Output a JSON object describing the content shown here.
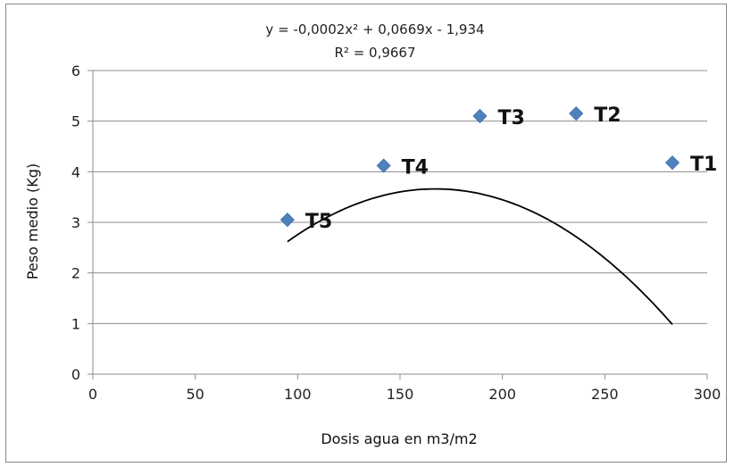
{
  "chart_data": {
    "type": "scatter",
    "title": "",
    "xlabel": "Dosis agua en m3/m2",
    "ylabel": "Peso medio (Kg)",
    "xlim": [
      0,
      300
    ],
    "ylim": [
      0,
      6
    ],
    "x_ticks": [
      0,
      50,
      100,
      150,
      200,
      250,
      300
    ],
    "y_ticks": [
      0,
      1,
      2,
      3,
      4,
      5,
      6
    ],
    "grid": "horizontal",
    "legend": "none",
    "marker_color": "#4f81bd",
    "trendline_color": "#000000",
    "points": [
      {
        "label": "T5",
        "x": 95,
        "y": 3.05
      },
      {
        "label": "T4",
        "x": 142,
        "y": 4.12
      },
      {
        "label": "T3",
        "x": 189,
        "y": 5.1
      },
      {
        "label": "T2",
        "x": 236,
        "y": 5.15
      },
      {
        "label": "T1",
        "x": 283,
        "y": 4.18
      }
    ],
    "trendline": {
      "type": "polynomial",
      "coefficients": [
        -0.0002,
        0.0669,
        -1.934
      ],
      "equation": "y = -0,0002x² + 0,0669x - 1,934",
      "r_squared": "R² = 0,9667"
    }
  }
}
